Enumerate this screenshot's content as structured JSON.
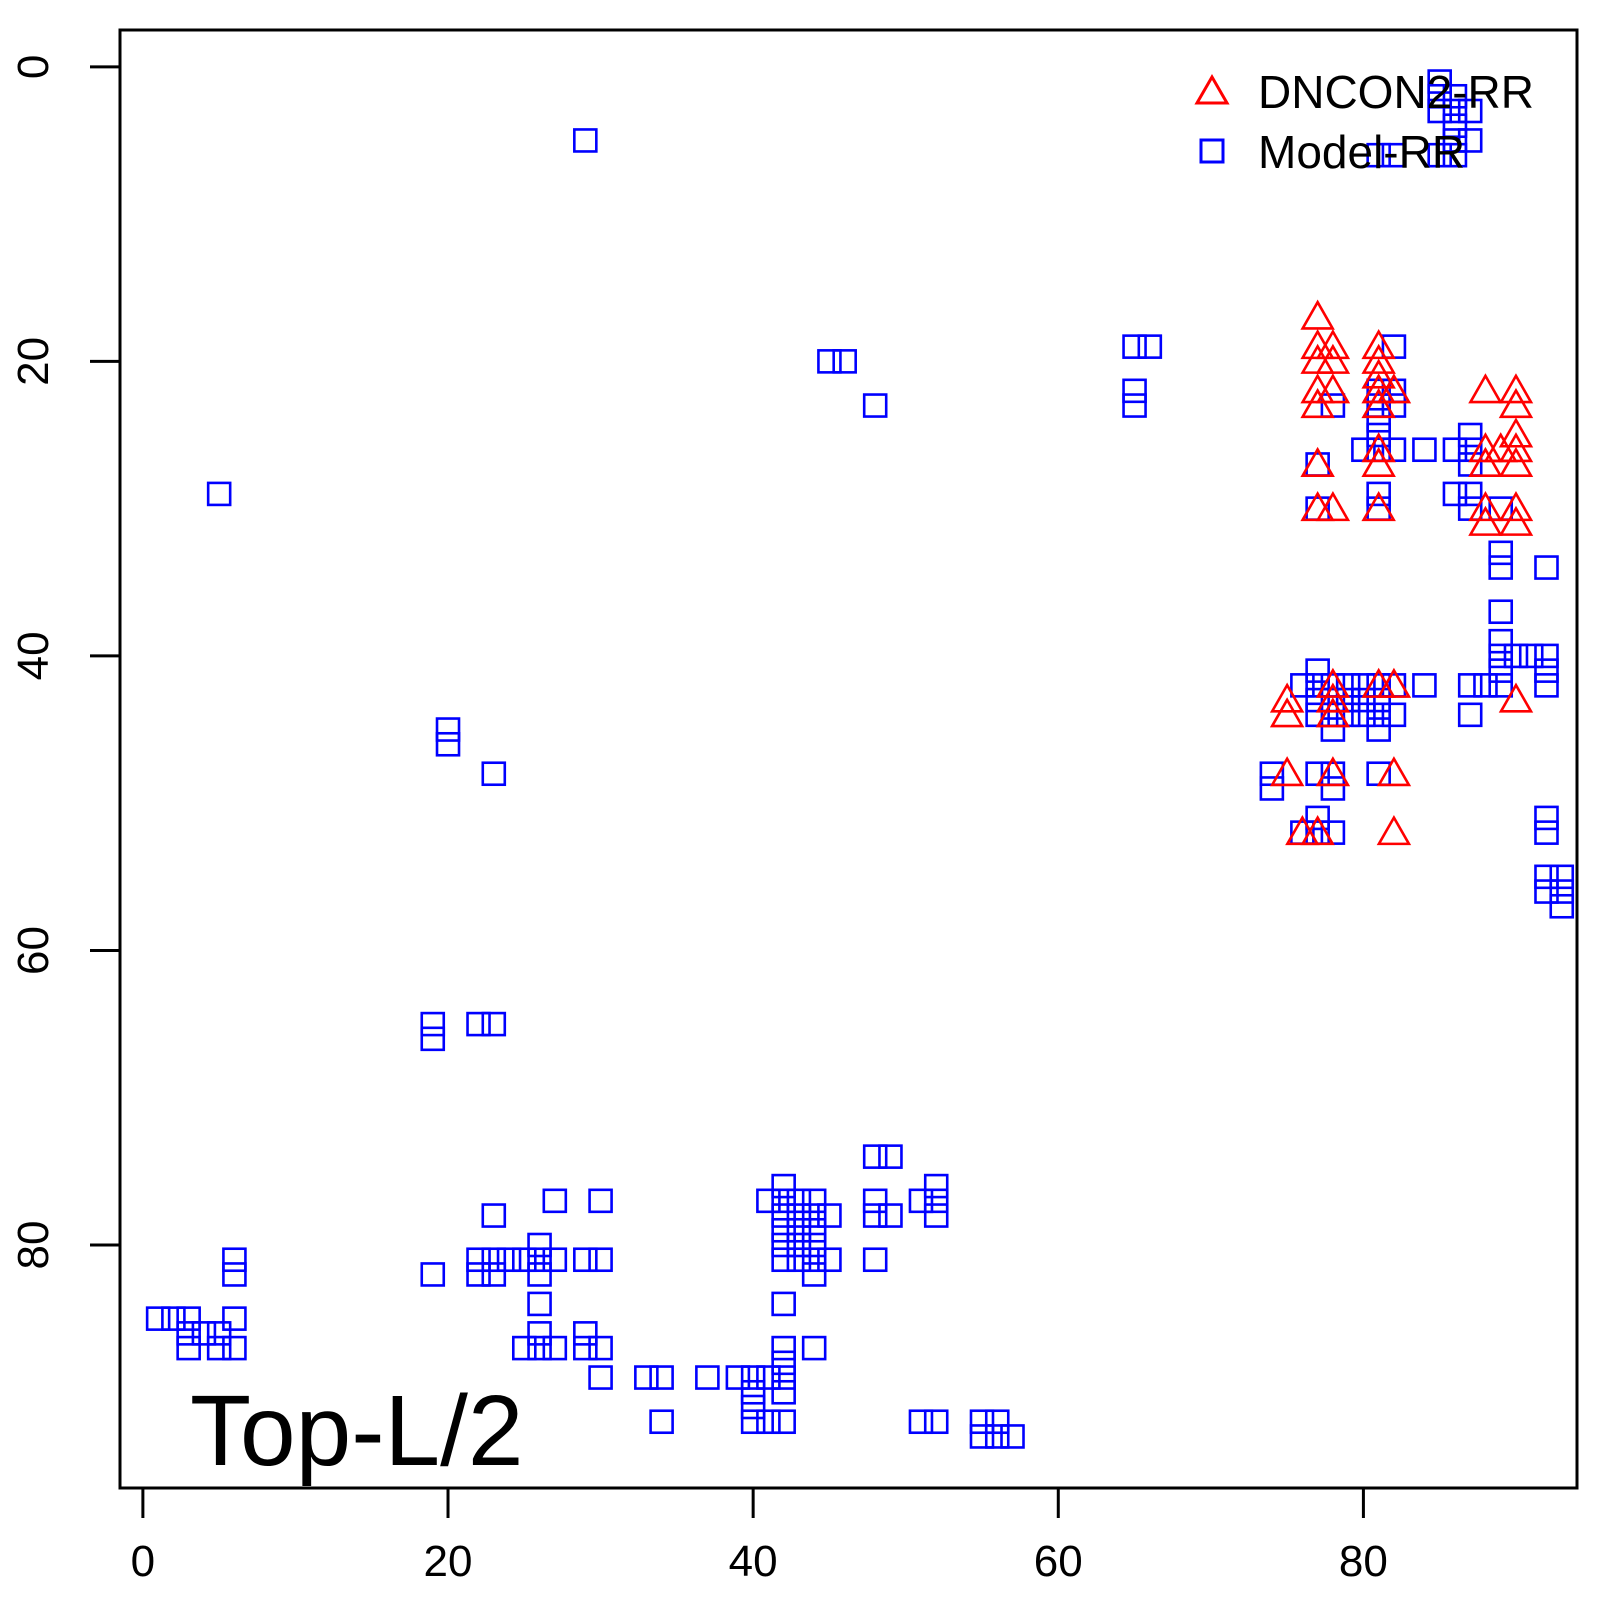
{
  "chart_data": {
    "type": "scatter",
    "title": "",
    "xlabel": "",
    "ylabel": "",
    "xlim": [
      -1.5,
      94
    ],
    "ylim": [
      96.5,
      -2.5
    ],
    "y_reversed": true,
    "grid": false,
    "x_ticks": [
      0,
      20,
      40,
      60,
      80
    ],
    "x_tick_labels": [
      "0",
      "20",
      "40",
      "60",
      "80"
    ],
    "y_ticks": [
      0,
      20,
      40,
      60,
      80
    ],
    "y_tick_labels": [
      "0",
      "20",
      "40",
      "60",
      "80"
    ],
    "annotation": "Top-L/2",
    "legend": {
      "placement": "top-right",
      "entries": [
        {
          "label": "DNCON2-RR",
          "marker": "triangle",
          "color": "#ff0000"
        },
        {
          "label": "Model-RR",
          "marker": "square",
          "color": "#0000ff"
        }
      ]
    },
    "series": [
      {
        "name": "Model-RR",
        "marker": "square",
        "color": "#0000ff",
        "points": [
          [
            29,
            5
          ],
          [
            5,
            29
          ],
          [
            45,
            20
          ],
          [
            46,
            20
          ],
          [
            48,
            23
          ],
          [
            65,
            19
          ],
          [
            66,
            19
          ],
          [
            65,
            22
          ],
          [
            65,
            23
          ],
          [
            20,
            45
          ],
          [
            20,
            46
          ],
          [
            23,
            48
          ],
          [
            19,
            65
          ],
          [
            19,
            66
          ],
          [
            22,
            65
          ],
          [
            23,
            65
          ],
          [
            48,
            74
          ],
          [
            49,
            74
          ],
          [
            27,
            77
          ],
          [
            30,
            77
          ],
          [
            23,
            78
          ],
          [
            41,
            77
          ],
          [
            42,
            76
          ],
          [
            42,
            77
          ],
          [
            43,
            77
          ],
          [
            44,
            77
          ],
          [
            42,
            78
          ],
          [
            43,
            78
          ],
          [
            44,
            78
          ],
          [
            45,
            78
          ],
          [
            42,
            79
          ],
          [
            43,
            79
          ],
          [
            44,
            79
          ],
          [
            42,
            80
          ],
          [
            43,
            80
          ],
          [
            44,
            80
          ],
          [
            42,
            81
          ],
          [
            43,
            81
          ],
          [
            44,
            81
          ],
          [
            45,
            81
          ],
          [
            44,
            82
          ],
          [
            48,
            77
          ],
          [
            48,
            78
          ],
          [
            49,
            78
          ],
          [
            48,
            81
          ],
          [
            51,
            77
          ],
          [
            52,
            76
          ],
          [
            52,
            77
          ],
          [
            52,
            78
          ],
          [
            19,
            82
          ],
          [
            22,
            81
          ],
          [
            23,
            81
          ],
          [
            24,
            81
          ],
          [
            25,
            81
          ],
          [
            26,
            81
          ],
          [
            27,
            81
          ],
          [
            22,
            82
          ],
          [
            23,
            82
          ],
          [
            26,
            80
          ],
          [
            26,
            82
          ],
          [
            29,
            81
          ],
          [
            30,
            81
          ],
          [
            6,
            81
          ],
          [
            6,
            82
          ],
          [
            6,
            85
          ],
          [
            1,
            85
          ],
          [
            2,
            85
          ],
          [
            3,
            85
          ],
          [
            3,
            86
          ],
          [
            4,
            86
          ],
          [
            3,
            87
          ],
          [
            5,
            86
          ],
          [
            5,
            87
          ],
          [
            6,
            87
          ],
          [
            26,
            84
          ],
          [
            26,
            86
          ],
          [
            25,
            87
          ],
          [
            26,
            87
          ],
          [
            27,
            87
          ],
          [
            29,
            86
          ],
          [
            29,
            87
          ],
          [
            30,
            87
          ],
          [
            30,
            89
          ],
          [
            42,
            84
          ],
          [
            42,
            87
          ],
          [
            44,
            87
          ],
          [
            42,
            88
          ],
          [
            41,
            89
          ],
          [
            42,
            89
          ],
          [
            40,
            89
          ],
          [
            39,
            89
          ],
          [
            40,
            90
          ],
          [
            42,
            90
          ],
          [
            40,
            91
          ],
          [
            40,
            92
          ],
          [
            41,
            92
          ],
          [
            42,
            92
          ],
          [
            33,
            89
          ],
          [
            34,
            89
          ],
          [
            37,
            89
          ],
          [
            34,
            92
          ],
          [
            51,
            92
          ],
          [
            52,
            92
          ],
          [
            55,
            92
          ],
          [
            56,
            92
          ],
          [
            55,
            93
          ],
          [
            56,
            93
          ],
          [
            57,
            93
          ],
          [
            85,
            1
          ],
          [
            85,
            2
          ],
          [
            86,
            2
          ],
          [
            85,
            3
          ],
          [
            86,
            3
          ],
          [
            87,
            3
          ],
          [
            86,
            4
          ],
          [
            86,
            5
          ],
          [
            87,
            5
          ],
          [
            85,
            6
          ],
          [
            86,
            6
          ],
          [
            81,
            6
          ],
          [
            82,
            6
          ],
          [
            82,
            19
          ],
          [
            78,
            23
          ],
          [
            81,
            22
          ],
          [
            81,
            23
          ],
          [
            82,
            22
          ],
          [
            82,
            23
          ],
          [
            81,
            24
          ],
          [
            81,
            25
          ],
          [
            81,
            26
          ],
          [
            80,
            26
          ],
          [
            82,
            26
          ],
          [
            84,
            26
          ],
          [
            86,
            26
          ],
          [
            87,
            25
          ],
          [
            87,
            26
          ],
          [
            87,
            27
          ],
          [
            86,
            29
          ],
          [
            87,
            29
          ],
          [
            87,
            30
          ],
          [
            89,
            30
          ],
          [
            77,
            27
          ],
          [
            77,
            30
          ],
          [
            81,
            29
          ],
          [
            81,
            30
          ],
          [
            89,
            33
          ],
          [
            89,
            34
          ],
          [
            92,
            34
          ],
          [
            89,
            37
          ],
          [
            89,
            39
          ],
          [
            89,
            40
          ],
          [
            90,
            40
          ],
          [
            91,
            40
          ],
          [
            92,
            40
          ],
          [
            89,
            41
          ],
          [
            92,
            41
          ],
          [
            89,
            42
          ],
          [
            92,
            42
          ],
          [
            87,
            42
          ],
          [
            88,
            42
          ],
          [
            87,
            44
          ],
          [
            84,
            42
          ],
          [
            77,
            41
          ],
          [
            76,
            42
          ],
          [
            77,
            42
          ],
          [
            78,
            42
          ],
          [
            79,
            42
          ],
          [
            80,
            42
          ],
          [
            81,
            42
          ],
          [
            82,
            42
          ],
          [
            77,
            43
          ],
          [
            78,
            43
          ],
          [
            79,
            43
          ],
          [
            80,
            43
          ],
          [
            81,
            43
          ],
          [
            77,
            44
          ],
          [
            78,
            44
          ],
          [
            79,
            44
          ],
          [
            80,
            44
          ],
          [
            81,
            44
          ],
          [
            82,
            44
          ],
          [
            78,
            45
          ],
          [
            81,
            45
          ],
          [
            74,
            48
          ],
          [
            74,
            49
          ],
          [
            77,
            48
          ],
          [
            78,
            48
          ],
          [
            78,
            49
          ],
          [
            81,
            48
          ],
          [
            77,
            51
          ],
          [
            76,
            52
          ],
          [
            77,
            52
          ],
          [
            78,
            52
          ],
          [
            92,
            51
          ],
          [
            92,
            52
          ],
          [
            92,
            55
          ],
          [
            92,
            56
          ],
          [
            93,
            55
          ],
          [
            93,
            56
          ],
          [
            93,
            57
          ]
        ]
      },
      {
        "name": "DNCON2-RR",
        "marker": "triangle",
        "color": "#ff0000",
        "points": [
          [
            77,
            17
          ],
          [
            77,
            19
          ],
          [
            78,
            19
          ],
          [
            77,
            20
          ],
          [
            78,
            20
          ],
          [
            77,
            22
          ],
          [
            78,
            22
          ],
          [
            77,
            23
          ],
          [
            77,
            27
          ],
          [
            77,
            30
          ],
          [
            78,
            30
          ],
          [
            81,
            19
          ],
          [
            81,
            20
          ],
          [
            81,
            21
          ],
          [
            81,
            22
          ],
          [
            82,
            22
          ],
          [
            81,
            23
          ],
          [
            81,
            26
          ],
          [
            81,
            27
          ],
          [
            81,
            30
          ],
          [
            88,
            22
          ],
          [
            90,
            22
          ],
          [
            90,
            23
          ],
          [
            90,
            25
          ],
          [
            88,
            26
          ],
          [
            89,
            26
          ],
          [
            90,
            26
          ],
          [
            88,
            27
          ],
          [
            90,
            27
          ],
          [
            88,
            30
          ],
          [
            90,
            30
          ],
          [
            88,
            31
          ],
          [
            90,
            31
          ],
          [
            75,
            43
          ],
          [
            75,
            44
          ],
          [
            78,
            42
          ],
          [
            78,
            43
          ],
          [
            78,
            44
          ],
          [
            81,
            42
          ],
          [
            82,
            42
          ],
          [
            90,
            43
          ],
          [
            75,
            48
          ],
          [
            78,
            48
          ],
          [
            82,
            48
          ],
          [
            76,
            52
          ],
          [
            77,
            52
          ],
          [
            82,
            52
          ]
        ]
      }
    ]
  }
}
